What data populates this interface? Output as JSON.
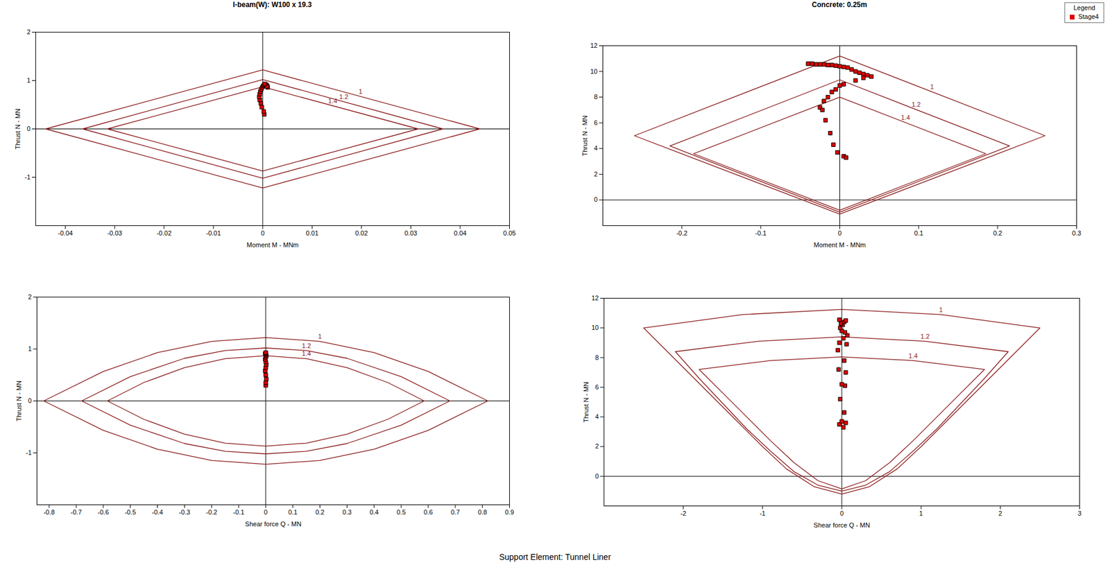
{
  "caption": "Support Element: Tunnel Liner",
  "chart_data": [
    {
      "type": "line",
      "title": "I-beam(W): W100 x 19.3",
      "xlabel": "Moment M - MNm",
      "ylabel": "Thrust N - MN",
      "xlim": [
        -0.046,
        0.05
      ],
      "xticks": [
        -0.04,
        -0.03,
        -0.02,
        -0.01,
        0,
        0.01,
        0.02,
        0.03,
        0.04,
        0.05
      ],
      "ylim": [
        -2,
        2
      ],
      "yticks": [
        -1,
        0,
        1,
        2
      ],
      "series": [
        {
          "name": "1",
          "type": "line",
          "color": "#8b1a1a",
          "x": [
            -0.044,
            0,
            0.044,
            0,
            -0.044
          ],
          "values": [
            0,
            1.22,
            0,
            -1.22,
            0
          ]
        },
        {
          "name": "1.2",
          "type": "line",
          "color": "#8b1a1a",
          "x": [
            -0.0365,
            0,
            0.0365,
            0,
            -0.0365
          ],
          "values": [
            0,
            1.02,
            0,
            -1.02,
            0
          ]
        },
        {
          "name": "1.4",
          "type": "line",
          "color": "#8b1a1a",
          "x": [
            -0.0315,
            0,
            0.0315,
            0,
            -0.0315
          ],
          "values": [
            0,
            0.87,
            0,
            -0.87,
            0
          ]
        },
        {
          "name": "Stage4",
          "type": "scatter",
          "marker": "square",
          "color": "#e00000",
          "x": [
            0.0003,
            0.0002,
            -0.0002,
            -0.0004,
            -0.0006,
            -0.0007,
            -0.0006,
            -0.0005,
            -0.0003,
            -0.0001,
            0.0001,
            0.0003,
            0.0005,
            0.0007,
            0.0009,
            0.001,
            0.0008,
            0.0004
          ],
          "values": [
            0.3,
            0.36,
            0.45,
            0.53,
            0.6,
            0.66,
            0.72,
            0.77,
            0.82,
            0.86,
            0.89,
            0.91,
            0.92,
            0.91,
            0.89,
            0.86,
            0.88,
            0.93
          ]
        }
      ]
    },
    {
      "type": "line",
      "title": "Concrete: 0.25m",
      "xlabel": "Moment M - MNm",
      "ylabel": "Thrust N - MN",
      "xlim": [
        -0.3,
        0.3
      ],
      "xticks": [
        -0.2,
        -0.1,
        0,
        0.1,
        0.2,
        0.3
      ],
      "ylim": [
        -2,
        12
      ],
      "yticks": [
        0,
        2,
        4,
        6,
        8,
        10,
        12
      ],
      "legend": "top-right",
      "legend_title": "Legend",
      "series": [
        {
          "name": "1",
          "type": "line",
          "color": "#8b1a1a",
          "x": [
            -0.26,
            0,
            0.26,
            0,
            -0.26
          ],
          "values": [
            5.0,
            11.2,
            5.0,
            -1.1,
            5.0
          ]
        },
        {
          "name": "1.2",
          "type": "line",
          "color": "#8b1a1a",
          "x": [
            -0.215,
            0,
            0.215,
            0,
            -0.215
          ],
          "values": [
            4.2,
            9.35,
            4.2,
            -0.95,
            4.2
          ]
        },
        {
          "name": "1.4",
          "type": "line",
          "color": "#8b1a1a",
          "x": [
            -0.185,
            0,
            0.185,
            0,
            -0.185
          ],
          "values": [
            3.6,
            8.0,
            3.6,
            -0.8,
            3.6
          ]
        },
        {
          "name": "Stage4",
          "type": "scatter",
          "marker": "square",
          "color": "#e00000",
          "x": [
            -0.04,
            -0.035,
            -0.03,
            -0.025,
            -0.02,
            -0.015,
            -0.01,
            -0.005,
            0,
            0.005,
            0.01,
            0.015,
            0.02,
            0.025,
            0.03,
            0.035,
            0.04,
            0.03,
            0.02,
            0.005,
            0,
            -0.005,
            -0.01,
            -0.015,
            -0.02,
            -0.025,
            -0.022,
            -0.018,
            -0.012,
            -0.008,
            -0.003,
            0.005,
            0.008
          ],
          "values": [
            10.6,
            10.6,
            10.55,
            10.55,
            10.55,
            10.5,
            10.5,
            10.45,
            10.4,
            10.35,
            10.3,
            10.15,
            10.0,
            9.9,
            9.8,
            9.7,
            9.6,
            9.5,
            9.3,
            9.0,
            8.9,
            8.6,
            8.4,
            8.0,
            7.7,
            7.2,
            7.0,
            6.2,
            5.2,
            4.3,
            3.7,
            3.4,
            3.3
          ]
        }
      ]
    },
    {
      "type": "line",
      "xlabel": "Shear force Q - MN",
      "ylabel": "Thrust N - MN",
      "xlim": [
        -0.845,
        0.9
      ],
      "xticks": [
        -0.8,
        -0.7,
        -0.6,
        -0.5,
        -0.4,
        -0.3,
        -0.2,
        -0.1,
        0,
        0.1,
        0.2,
        0.3,
        0.4,
        0.5,
        0.6,
        0.7,
        0.8,
        0.9
      ],
      "ylim": [
        -2,
        2
      ],
      "yticks": [
        -1,
        0,
        1,
        2
      ],
      "series": [
        {
          "name": "1",
          "type": "line",
          "color": "#8b1a1a",
          "x": [
            -0.82,
            -0.6,
            -0.4,
            -0.2,
            0,
            0.2,
            0.4,
            0.6,
            0.82,
            0.6,
            0.4,
            0.2,
            0,
            -0.2,
            -0.4,
            -0.6,
            -0.82
          ],
          "values": [
            0,
            0.567,
            0.93,
            1.147,
            1.22,
            1.147,
            0.93,
            0.567,
            0,
            -0.567,
            -0.93,
            -1.147,
            -1.22,
            -1.147,
            -0.93,
            -0.567,
            0
          ]
        },
        {
          "name": "1.2",
          "type": "line",
          "color": "#8b1a1a",
          "x": [
            -0.68,
            -0.5,
            -0.3,
            -0.15,
            0,
            0.15,
            0.3,
            0.5,
            0.68,
            0.5,
            0.3,
            0.15,
            0,
            -0.15,
            -0.3,
            -0.5,
            -0.68
          ],
          "values": [
            0,
            0.468,
            0.821,
            0.97,
            1.02,
            0.97,
            0.821,
            0.468,
            0,
            -0.468,
            -0.821,
            -0.97,
            -1.02,
            -0.97,
            -0.821,
            -0.468,
            0
          ]
        },
        {
          "name": "1.4",
          "type": "line",
          "color": "#8b1a1a",
          "x": [
            -0.585,
            -0.45,
            -0.3,
            -0.15,
            0,
            0.15,
            0.3,
            0.45,
            0.585,
            0.45,
            0.3,
            0.15,
            0,
            -0.15,
            -0.3,
            -0.45,
            -0.585
          ],
          "values": [
            0,
            0.355,
            0.641,
            0.813,
            0.87,
            0.813,
            0.641,
            0.355,
            0,
            -0.355,
            -0.641,
            -0.813,
            -0.87,
            -0.813,
            -0.641,
            -0.355,
            0
          ]
        },
        {
          "name": "Stage4",
          "type": "scatter",
          "marker": "square",
          "color": "#e00000",
          "x": [
            0,
            0,
            0.002,
            0,
            -0.002,
            0,
            0.002,
            0,
            -0.002,
            0,
            0.002,
            0,
            -0.002,
            0,
            0
          ],
          "values": [
            0.3,
            0.35,
            0.42,
            0.5,
            0.58,
            0.64,
            0.7,
            0.75,
            0.8,
            0.84,
            0.87,
            0.89,
            0.91,
            0.92,
            0.93
          ]
        }
      ]
    },
    {
      "type": "line",
      "xlabel": "Shear force Q - MN",
      "ylabel": "Thrust N - MN",
      "xlim": [
        -3,
        3
      ],
      "xticks": [
        -2,
        -1,
        0,
        1,
        2,
        3
      ],
      "ylim": [
        -2,
        12
      ],
      "yticks": [
        0,
        2,
        4,
        6,
        8,
        10,
        12
      ],
      "series": [
        {
          "name": "1",
          "type": "line",
          "color": "#8b1a1a",
          "x": [
            -2.5,
            -1.25,
            0,
            1.25,
            2.5,
            2.2,
            1.9,
            1.6,
            1.3,
            1.0,
            0.7,
            0.35,
            0,
            -0.35,
            -0.7,
            -1.0,
            -1.3,
            -1.6,
            -1.9,
            -2.2,
            -2.5
          ],
          "values": [
            10,
            10.9,
            11.25,
            10.9,
            10,
            8.4,
            6.8,
            5.2,
            3.6,
            2.0,
            0.5,
            -0.7,
            -1.2,
            -0.7,
            0.5,
            2.0,
            3.6,
            5.2,
            6.8,
            8.4,
            10
          ]
        },
        {
          "name": "1.2",
          "type": "line",
          "color": "#8b1a1a",
          "x": [
            -2.1,
            -1.05,
            0,
            1.05,
            2.1,
            1.8,
            1.5,
            1.2,
            0.9,
            0.6,
            0.3,
            0,
            -0.3,
            -0.6,
            -0.9,
            -1.2,
            -1.5,
            -1.8,
            -2.1
          ],
          "values": [
            8.4,
            9.1,
            9.4,
            9.1,
            8.4,
            6.6,
            4.9,
            3.2,
            1.7,
            0.3,
            -0.6,
            -1.0,
            -0.6,
            0.3,
            1.7,
            3.2,
            4.9,
            6.6,
            8.4
          ]
        },
        {
          "name": "1.4",
          "type": "line",
          "color": "#8b1a1a",
          "x": [
            -1.8,
            -0.9,
            0,
            0.9,
            1.8,
            1.5,
            1.2,
            0.9,
            0.6,
            0.3,
            0,
            -0.3,
            -0.6,
            -0.9,
            -1.2,
            -1.5,
            -1.8
          ],
          "values": [
            7.2,
            7.8,
            8.05,
            7.8,
            7.2,
            5.6,
            4.0,
            2.4,
            0.9,
            -0.3,
            -0.85,
            -0.3,
            0.9,
            2.4,
            4.0,
            5.6,
            7.2
          ]
        },
        {
          "name": "Stage4",
          "type": "scatter",
          "marker": "square",
          "color": "#e00000",
          "x": [
            0.02,
            -0.03,
            0.05,
            0,
            0.03,
            -0.02,
            0.04,
            0,
            0.05,
            -0.04,
            0.03,
            -0.05,
            0.06,
            -0.03,
            0.02,
            0.07,
            0.04,
            0,
            -0.02,
            0.01,
            -0.01,
            0.03,
            0.05,
            -0.03
          ],
          "values": [
            3.3,
            3.5,
            3.6,
            3.7,
            4.3,
            5.2,
            6.1,
            6.2,
            7.0,
            7.2,
            7.8,
            8.5,
            8.9,
            9.0,
            9.3,
            9.5,
            9.7,
            9.8,
            10.0,
            10.2,
            10.3,
            10.4,
            10.5,
            10.55
          ]
        }
      ]
    }
  ]
}
